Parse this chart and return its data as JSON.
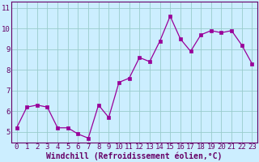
{
  "x": [
    0,
    1,
    2,
    3,
    4,
    5,
    6,
    7,
    8,
    9,
    10,
    11,
    12,
    13,
    14,
    15,
    16,
    17,
    18,
    19,
    20,
    21,
    22,
    23
  ],
  "y": [
    5.2,
    6.2,
    6.3,
    6.2,
    5.2,
    5.2,
    4.9,
    4.7,
    6.3,
    5.7,
    7.4,
    7.6,
    8.6,
    8.4,
    9.4,
    10.6,
    9.5,
    8.9,
    9.7,
    9.9,
    9.8,
    9.9,
    9.2,
    8.3
  ],
  "line_color": "#990099",
  "marker": "s",
  "marker_size": 2.5,
  "bg_color": "#cceeff",
  "grid_color": "#99cccc",
  "ylabel_ticks": [
    5,
    6,
    7,
    8,
    9,
    10,
    11
  ],
  "ylim": [
    4.5,
    11.3
  ],
  "xlim": [
    -0.5,
    23.5
  ],
  "xlabel": "Windchill (Refroidissement éolien,°C)",
  "xlabel_fontsize": 7,
  "tick_fontsize": 6.5,
  "axis_label_color": "#660066",
  "spine_color": "#660066"
}
